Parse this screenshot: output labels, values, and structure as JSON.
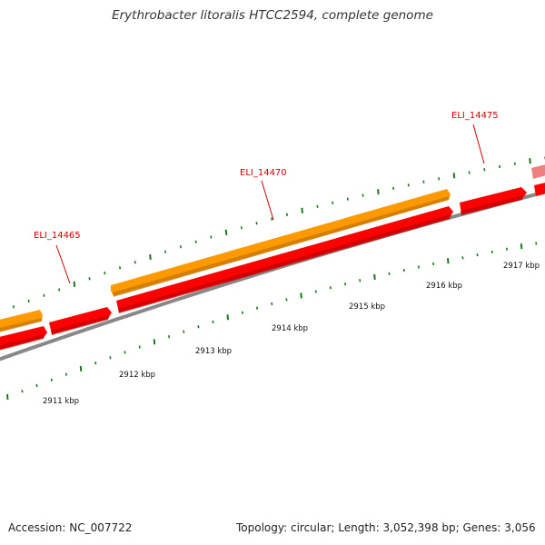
{
  "title": "Erythrobacter litoralis HTCC2594, complete genome",
  "footer": {
    "accession": "Accession: NC_007722",
    "summary": "Topology: circular; Length: 3,052,398 bp; Genes: 3,056"
  },
  "scale_ticks": [
    {
      "label": "2911 kbp"
    },
    {
      "label": "2912 kbp"
    },
    {
      "label": "2913 kbp"
    },
    {
      "label": "2914 kbp"
    },
    {
      "label": "2915 kbp"
    },
    {
      "label": "2916 kbp"
    },
    {
      "label": "2917 kbp"
    }
  ],
  "loci": [
    {
      "label": "ELI_14465"
    },
    {
      "label": "ELI_14470"
    },
    {
      "label": "ELI_14475"
    }
  ],
  "colors": {
    "gene_feature": "#ff0000",
    "gene_feature_dark": "#c00000",
    "cds_feature": "#ff9900",
    "cds_feature_dark": "#b86e00",
    "faded_feature": "#f08080",
    "backbone": "#888888",
    "tick_marks": "#1a7a1a",
    "locus_label": "#cc0000"
  }
}
